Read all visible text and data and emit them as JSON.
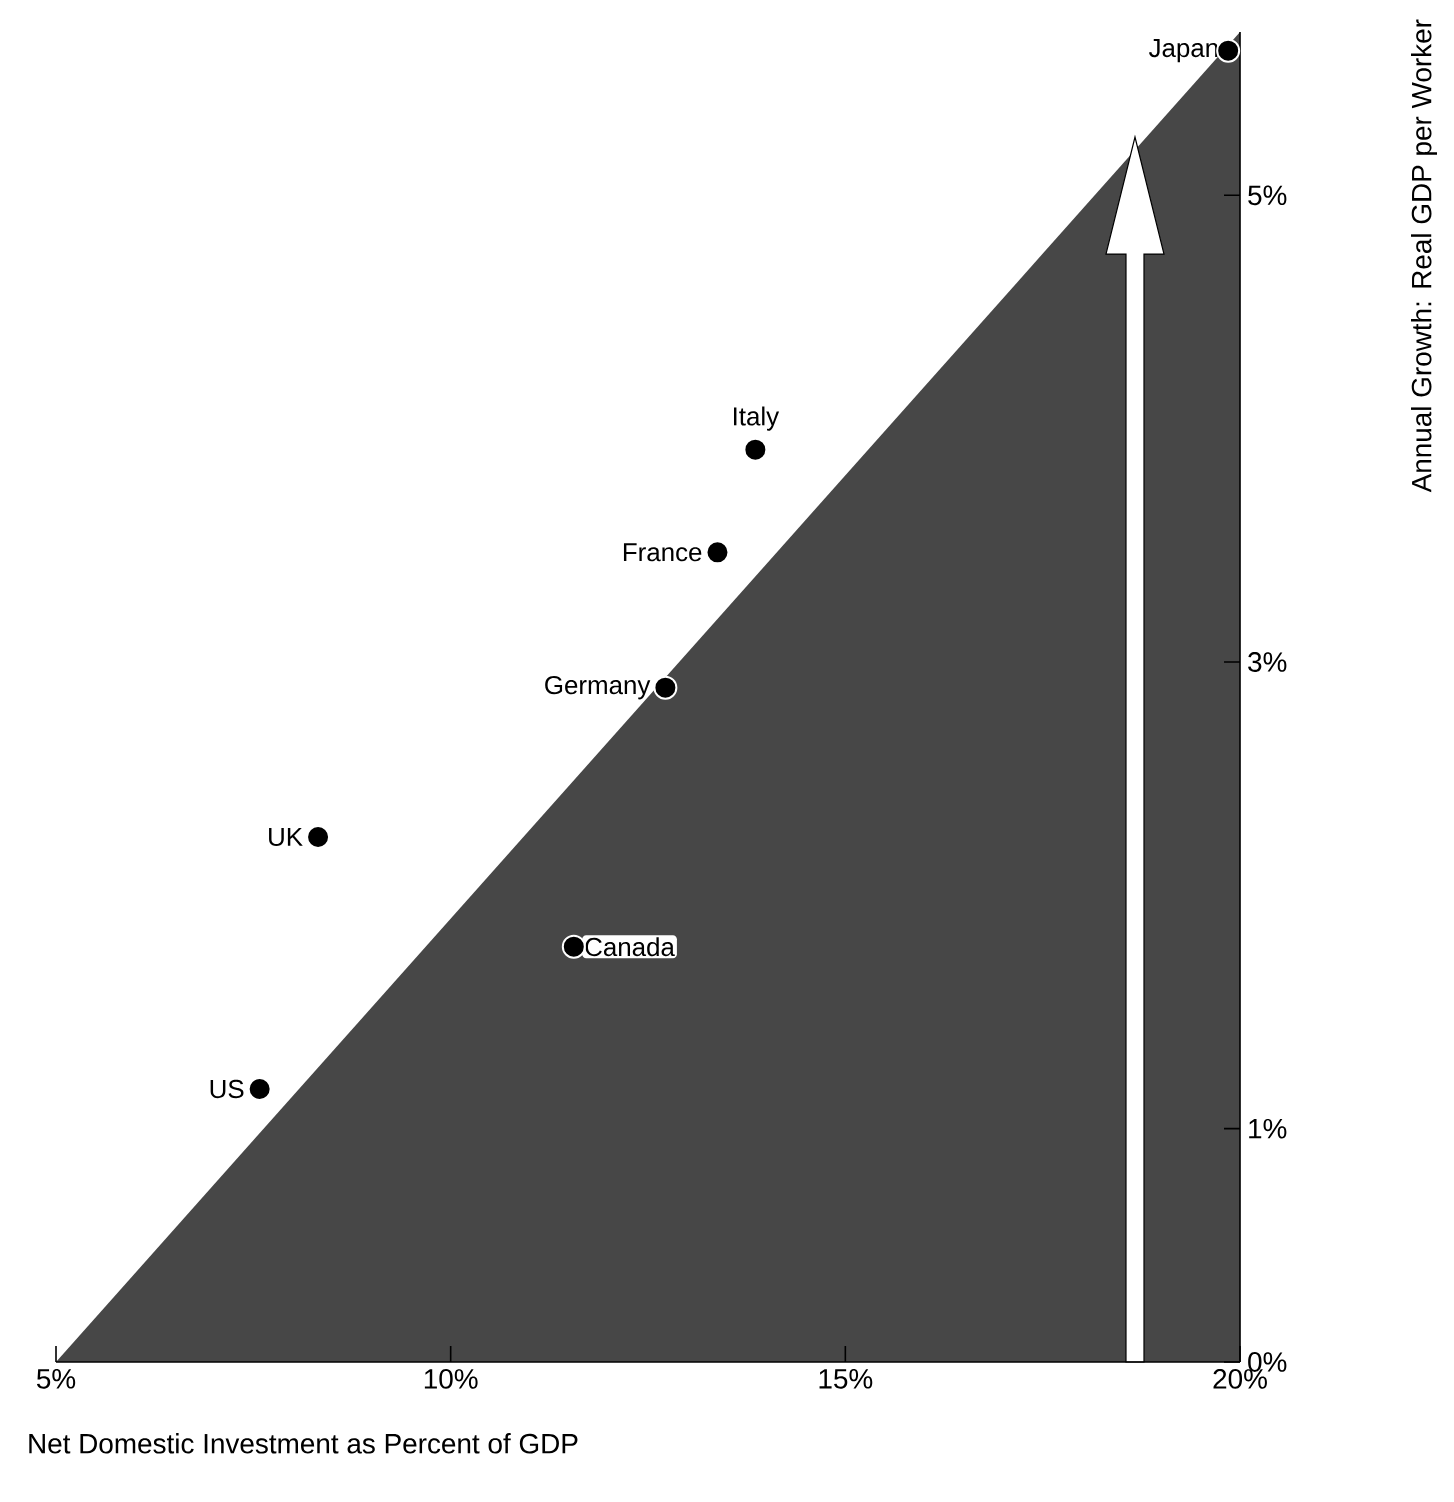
{
  "chart_data": {
    "type": "scatter",
    "xlabel": "Net Domestic Investment as Percent of GDP",
    "ylabel": "Annual Growth: Real GDP per Worker",
    "marker": "circle",
    "series": [
      {
        "type": "area",
        "x": [
          5,
          20
        ],
        "values": [
          0,
          5.7
        ],
        "color": "#474747",
        "marker": "none"
      },
      {
        "x": [
          19.85,
          13.86,
          13.38,
          12.72,
          8.32,
          11.56,
          7.58
        ],
        "values": [
          5.62,
          3.91,
          3.47,
          2.89,
          2.25,
          1.78,
          1.17
        ],
        "color": "#000000"
      }
    ],
    "annotations": [
      {
        "text": "Japan",
        "x": 19.85,
        "y": 5.62
      },
      {
        "text": "Italy",
        "x": 13.86,
        "y": 3.91
      },
      {
        "text": "France",
        "x": 13.38,
        "y": 3.47
      },
      {
        "text": "Germany",
        "x": 12.72,
        "y": 2.89
      },
      {
        "text": "UK",
        "x": 8.32,
        "y": 2.25
      },
      {
        "text": "Canada",
        "x": 11.56,
        "y": 1.78
      },
      {
        "text": "US",
        "x": 7.58,
        "y": 1.17
      }
    ],
    "xlim": [
      5,
      20
    ],
    "ylim": [
      0,
      5.7
    ],
    "xticks": [
      {
        "value": 5,
        "label": "5%"
      },
      {
        "value": 10,
        "label": "10%"
      },
      {
        "value": 15,
        "label": "15%"
      },
      {
        "value": 20,
        "label": "20%"
      }
    ],
    "yticks": [
      {
        "value": 0,
        "label": "0%"
      },
      {
        "value": 1,
        "label": "1%"
      },
      {
        "value": 3,
        "label": "3%"
      },
      {
        "value": 5,
        "label": "5%"
      }
    ],
    "grid": false
  }
}
